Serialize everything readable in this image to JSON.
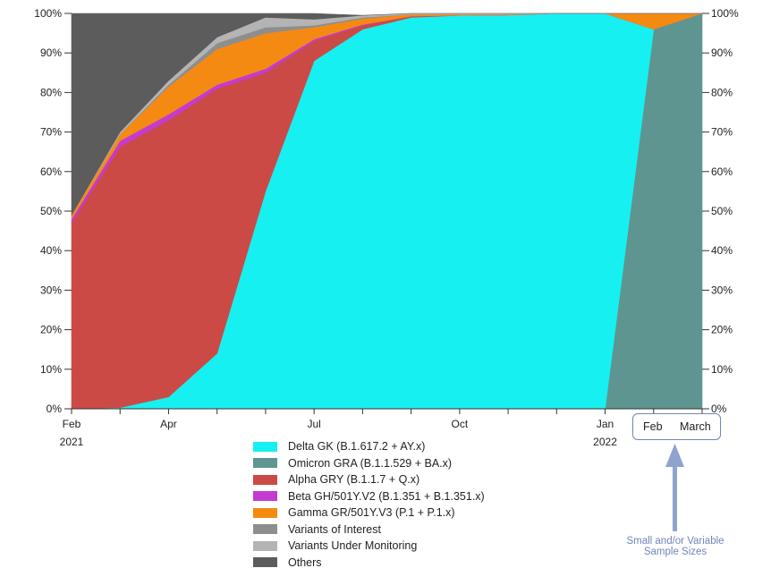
{
  "chart_data": {
    "type": "area",
    "stacked": true,
    "normalized": true,
    "x": [
      "2021-02",
      "2021-03",
      "2021-04",
      "2021-05",
      "2021-06",
      "2021-07",
      "2021-08",
      "2021-09",
      "2021-10",
      "2021-11",
      "2021-12",
      "2022-01",
      "2022-02",
      "2022-03"
    ],
    "x_tick_labels": [
      {
        "text": "Feb",
        "sub": "2021",
        "x": "2021-02"
      },
      {
        "text": "Apr",
        "sub": "",
        "x": "2021-04"
      },
      {
        "text": "Jul",
        "sub": "",
        "x": "2021-07"
      },
      {
        "text": "Oct",
        "sub": "",
        "x": "2021-10"
      },
      {
        "text": "Jan",
        "sub": "2022",
        "x": "2022-01"
      }
    ],
    "boxed_tick_labels": [
      "Feb",
      "March"
    ],
    "y_ticks": [
      "0%",
      "10%",
      "20%",
      "30%",
      "40%",
      "50%",
      "60%",
      "70%",
      "80%",
      "90%",
      "100%"
    ],
    "ylim": [
      0,
      100
    ],
    "series_order_bottom_to_top": [
      "omicron",
      "delta",
      "alpha",
      "beta",
      "gamma",
      "voi",
      "vum",
      "others"
    ],
    "series": [
      {
        "key": "delta",
        "name": "Delta GK (B.1.617.2 + AY.x)",
        "color": "#17f0f0",
        "values": [
          0,
          0.3,
          3,
          14,
          55,
          88,
          96,
          99,
          99.5,
          99.6,
          100,
          100,
          0,
          0
        ]
      },
      {
        "key": "omicron",
        "name": "Omicron GRA (B.1.1.529 + BA.x)",
        "color": "#5f9590",
        "values": [
          0,
          0,
          0,
          0,
          0,
          0,
          0,
          0,
          0,
          0,
          0,
          0,
          96,
          100
        ]
      },
      {
        "key": "alpha",
        "name": "Alpha GRY (B.1.1.7 + Q.x)",
        "color": "#cc4a45",
        "values": [
          47,
          66,
          70,
          67,
          30,
          5,
          1,
          0.3,
          0,
          0,
          0,
          0,
          0,
          0
        ]
      },
      {
        "key": "beta",
        "name": "Beta GH/501Y.V2 (B.1.351 + B.1.351.x)",
        "color": "#c33bd0",
        "values": [
          1,
          1.5,
          1.5,
          1,
          1,
          0.5,
          0.2,
          0,
          0,
          0,
          0,
          0,
          0,
          0
        ]
      },
      {
        "key": "gamma",
        "name": "Gamma GR/501Y.V3 (P.1 + P.1.x)",
        "color": "#f58a12",
        "values": [
          1,
          1.7,
          7,
          9,
          9,
          3,
          1.5,
          0.5,
          0.3,
          0.2,
          0,
          0,
          4,
          0
        ]
      },
      {
        "key": "voi",
        "name": "Variants of Interest",
        "color": "#8e8e8e",
        "values": [
          0,
          0,
          0.5,
          1.5,
          1.5,
          0.5,
          0.3,
          0,
          0,
          0,
          0,
          0,
          0,
          0
        ]
      },
      {
        "key": "vum",
        "name": "Variants Under Monitoring",
        "color": "#b4b4b4",
        "values": [
          0,
          0.5,
          1,
          1.5,
          2.5,
          1.5,
          0.5,
          0.2,
          0.2,
          0.2,
          0,
          0,
          0,
          0
        ]
      },
      {
        "key": "others",
        "name": "Others",
        "color": "#5c5c5c",
        "values": [
          51,
          30,
          17,
          6,
          1,
          1.5,
          0,
          0,
          0,
          0,
          0,
          0,
          0,
          0
        ]
      }
    ]
  },
  "annotation": {
    "box_labels": [
      "Feb",
      "March"
    ],
    "note": "Small and/or Variable Sample Sizes",
    "arrow_color": "#8ea4cf"
  }
}
